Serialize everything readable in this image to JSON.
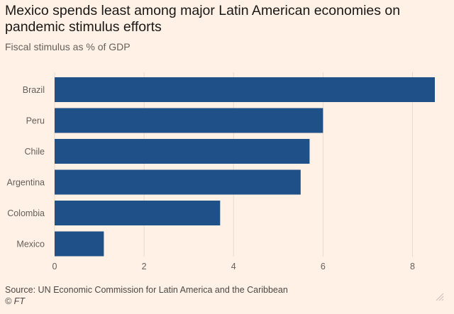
{
  "header": {
    "title": "Mexico spends least among major Latin American economies on pandemic stimulus efforts",
    "subtitle": "Fiscal stimulus as % of GDP"
  },
  "footer": {
    "source": "Source: UN Economic Commission for Latin America and the Caribbean",
    "credit": "© FT"
  },
  "colors": {
    "background": "#fff1e5",
    "bar": "#1f5088",
    "gridline": "#e6d9ce",
    "tick_text": "#66605c"
  },
  "chart_data": {
    "type": "bar",
    "orientation": "horizontal",
    "title": "Mexico spends least among major Latin American economies on pandemic stimulus efforts",
    "subtitle": "Fiscal stimulus as % of GDP",
    "categories": [
      "Brazil",
      "Peru",
      "Chile",
      "Argentina",
      "Colombia",
      "Mexico"
    ],
    "values": [
      8.5,
      6.0,
      5.7,
      5.5,
      3.7,
      1.1
    ],
    "xlim": [
      0,
      8.5
    ],
    "xticks": [
      0,
      2,
      4,
      6,
      8
    ],
    "xlabel": "",
    "ylabel": "",
    "grid": "vertical",
    "legend": "none"
  }
}
